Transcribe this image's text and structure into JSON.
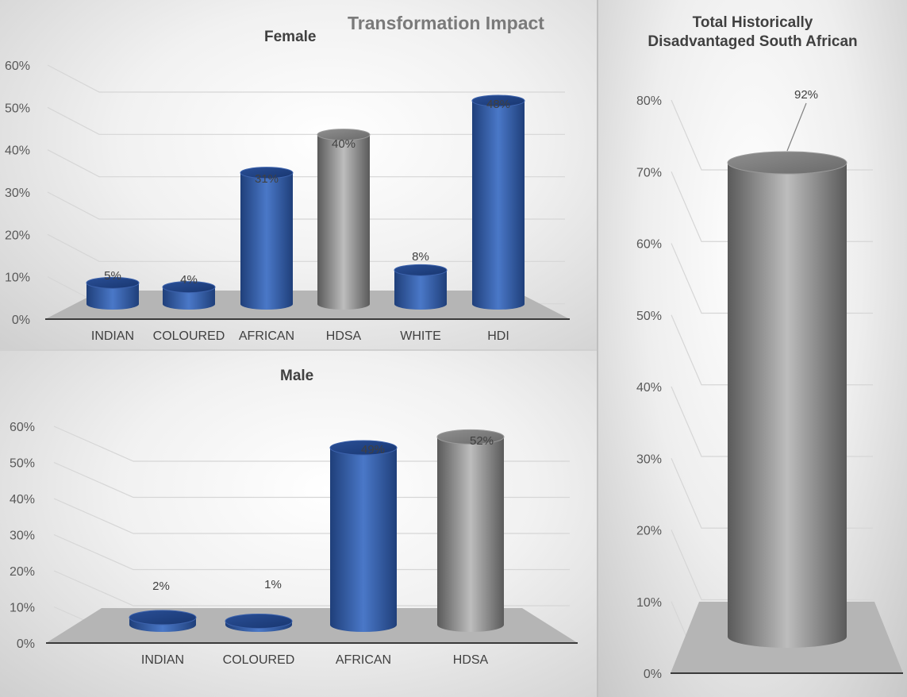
{
  "main_title": "Transformation Impact",
  "colors": {
    "blue": "#2f5597",
    "grey": "#7f7f7f",
    "floor": "#b4b4b4"
  },
  "chart_data": [
    {
      "type": "bar",
      "title": "Female",
      "categories": [
        "INDIAN",
        "COLOURED",
        "AFRICAN",
        "HDSA",
        "WHITE",
        "HDI"
      ],
      "values": [
        5,
        4,
        31,
        40,
        8,
        48
      ],
      "data_labels": [
        "5%",
        "4%",
        "31%",
        "40%",
        "8%",
        "48%"
      ],
      "bar_colors": [
        "blue",
        "blue",
        "blue",
        "grey",
        "blue",
        "blue"
      ],
      "ylim": [
        0,
        60
      ],
      "yticks": [
        "0%",
        "10%",
        "20%",
        "30%",
        "40%",
        "50%",
        "60%"
      ],
      "grid": true
    },
    {
      "type": "bar",
      "title": "Male",
      "categories": [
        "INDIAN",
        "COLOURED",
        "AFRICAN",
        "HDSA"
      ],
      "values": [
        2,
        1,
        49,
        52
      ],
      "data_labels": [
        "2%",
        "1%",
        "49%",
        "52%"
      ],
      "bar_colors": [
        "blue",
        "blue",
        "blue",
        "grey"
      ],
      "ylim": [
        0,
        60
      ],
      "yticks": [
        "0%",
        "10%",
        "20%",
        "30%",
        "40%",
        "50%",
        "60%"
      ],
      "grid": true
    },
    {
      "type": "bar",
      "title": "Total Historically Disadvantaged South African",
      "title_lines": [
        "Total Historically",
        "Disadvantaged South African"
      ],
      "categories": [
        ""
      ],
      "values": [
        92
      ],
      "data_labels": [
        "92%"
      ],
      "bar_colors": [
        "grey"
      ],
      "ylim": [
        0,
        80
      ],
      "yticks": [
        "0%",
        "10%",
        "20%",
        "30%",
        "40%",
        "50%",
        "60%",
        "70%",
        "80%"
      ],
      "grid": true
    }
  ]
}
